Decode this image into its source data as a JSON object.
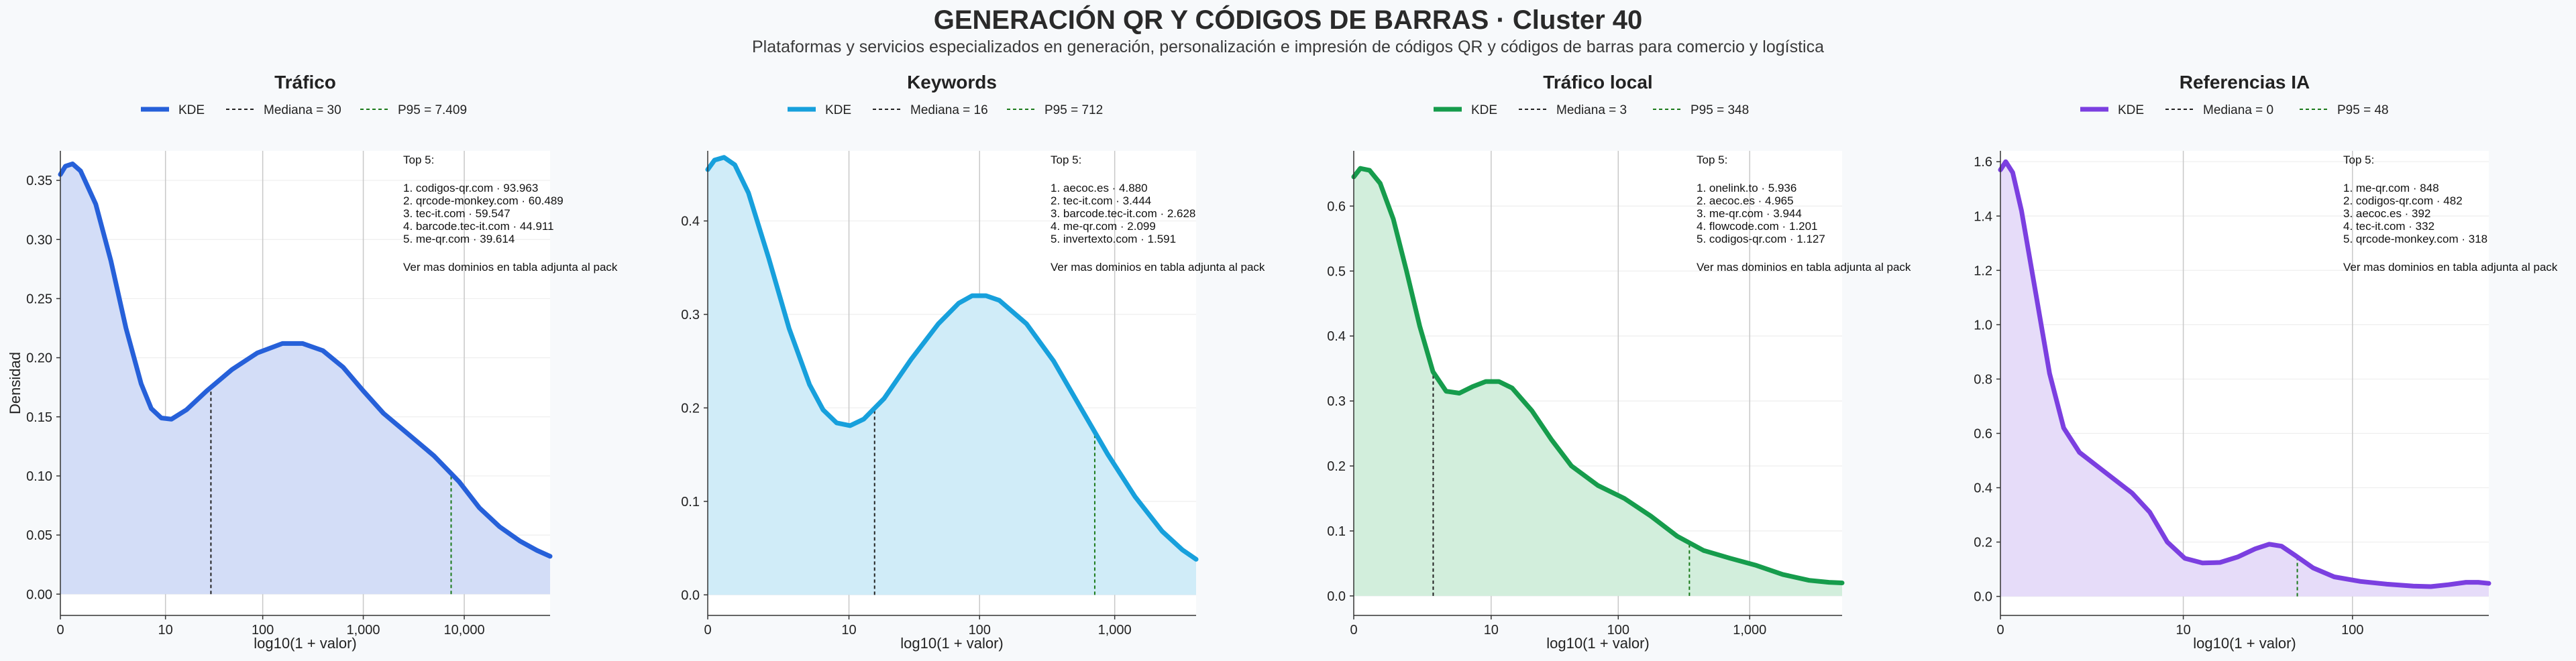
{
  "figure": {
    "title": "GENERACIÓN QR Y CÓDIGOS DE BARRAS · Cluster 40",
    "subtitle": "Plataformas y servicios especializados en generación, personalización e impresión de códigos QR y códigos de barras para comercio y logística",
    "background": "#f7f9fb"
  },
  "chart_data": [
    {
      "type": "area",
      "title": "Tráfico",
      "xlabel": "log10(1 + valor)",
      "ylabel": "Densidad",
      "xlim": [
        0,
        4.85
      ],
      "ylim": [
        -0.018,
        0.375
      ],
      "x_ticks": [
        {
          "v": 0,
          "label": "0"
        },
        {
          "v": 1.041,
          "label": "10"
        },
        {
          "v": 2.004,
          "label": "100"
        },
        {
          "v": 3.0,
          "label": "1,000"
        },
        {
          "v": 4.0,
          "label": "10,000"
        }
      ],
      "y_ticks": [
        {
          "v": 0,
          "label": "0.00"
        },
        {
          "v": 0.05,
          "label": "0.05"
        },
        {
          "v": 0.1,
          "label": "0.10"
        },
        {
          "v": 0.15,
          "label": "0.15"
        },
        {
          "v": 0.2,
          "label": "0.20"
        },
        {
          "v": 0.25,
          "label": "0.25"
        },
        {
          "v": 0.3,
          "label": "0.30"
        },
        {
          "v": 0.35,
          "label": "0.35"
        }
      ],
      "color": "#2660d9",
      "fill": "#d3ddf7",
      "kde": [
        [
          0,
          0.355
        ],
        [
          0.05,
          0.362
        ],
        [
          0.12,
          0.364
        ],
        [
          0.2,
          0.358
        ],
        [
          0.35,
          0.33
        ],
        [
          0.5,
          0.282
        ],
        [
          0.65,
          0.225
        ],
        [
          0.8,
          0.178
        ],
        [
          0.9,
          0.157
        ],
        [
          1.0,
          0.149
        ],
        [
          1.1,
          0.148
        ],
        [
          1.25,
          0.156
        ],
        [
          1.45,
          0.172
        ],
        [
          1.7,
          0.19
        ],
        [
          1.95,
          0.204
        ],
        [
          2.2,
          0.212
        ],
        [
          2.4,
          0.212
        ],
        [
          2.6,
          0.206
        ],
        [
          2.8,
          0.192
        ],
        [
          3.0,
          0.172
        ],
        [
          3.2,
          0.153
        ],
        [
          3.45,
          0.135
        ],
        [
          3.7,
          0.117
        ],
        [
          3.95,
          0.095
        ],
        [
          4.15,
          0.073
        ],
        [
          4.35,
          0.057
        ],
        [
          4.55,
          0.045
        ],
        [
          4.72,
          0.037
        ],
        [
          4.85,
          0.032
        ]
      ],
      "median": {
        "x": 1.491,
        "label": "Mediana = 30"
      },
      "p95": {
        "x": 3.87,
        "label": "P95 = 7.409"
      },
      "legend_kde": "KDE",
      "top5": {
        "heading": "Top 5:",
        "items": [
          "1. codigos-qr.com · 93.963",
          "2. qrcode-monkey.com · 60.489",
          "3. tec-it.com · 59.547",
          "4. barcode.tec-it.com · 44.911",
          "5. me-qr.com · 39.614"
        ],
        "note": "Ver mas dominios en tabla adjunta al pack"
      }
    },
    {
      "type": "area",
      "title": "Keywords",
      "xlabel": "log10(1 + valor)",
      "ylabel": "",
      "xlim": [
        0,
        3.6
      ],
      "ylim": [
        -0.022,
        0.475
      ],
      "x_ticks": [
        {
          "v": 0,
          "label": "0"
        },
        {
          "v": 1.041,
          "label": "10"
        },
        {
          "v": 2.004,
          "label": "100"
        },
        {
          "v": 3.0,
          "label": "1,000"
        }
      ],
      "y_ticks": [
        {
          "v": 0,
          "label": "0.0"
        },
        {
          "v": 0.1,
          "label": "0.1"
        },
        {
          "v": 0.2,
          "label": "0.2"
        },
        {
          "v": 0.3,
          "label": "0.3"
        },
        {
          "v": 0.4,
          "label": "0.4"
        }
      ],
      "color": "#17a0dc",
      "fill": "#d0ecf8",
      "kde": [
        [
          0,
          0.455
        ],
        [
          0.05,
          0.465
        ],
        [
          0.12,
          0.468
        ],
        [
          0.2,
          0.46
        ],
        [
          0.3,
          0.43
        ],
        [
          0.45,
          0.36
        ],
        [
          0.6,
          0.285
        ],
        [
          0.75,
          0.225
        ],
        [
          0.85,
          0.198
        ],
        [
          0.95,
          0.184
        ],
        [
          1.05,
          0.181
        ],
        [
          1.15,
          0.188
        ],
        [
          1.3,
          0.21
        ],
        [
          1.5,
          0.252
        ],
        [
          1.7,
          0.29
        ],
        [
          1.85,
          0.312
        ],
        [
          1.95,
          0.32
        ],
        [
          2.05,
          0.32
        ],
        [
          2.15,
          0.315
        ],
        [
          2.35,
          0.29
        ],
        [
          2.55,
          0.25
        ],
        [
          2.75,
          0.2
        ],
        [
          2.95,
          0.15
        ],
        [
          3.15,
          0.105
        ],
        [
          3.35,
          0.068
        ],
        [
          3.5,
          0.048
        ],
        [
          3.6,
          0.038
        ]
      ],
      "median": {
        "x": 1.23,
        "label": "Mediana = 16"
      },
      "p95": {
        "x": 2.853,
        "label": "P95 = 712"
      },
      "legend_kde": "KDE",
      "top5": {
        "heading": "Top 5:",
        "items": [
          "1. aecoc.es · 4.880",
          "2. tec-it.com · 3.444",
          "3. barcode.tec-it.com · 2.628",
          "4. me-qr.com · 2.099",
          "5. invertexto.com · 1.591"
        ],
        "note": "Ver mas dominios en tabla adjunta al pack"
      }
    },
    {
      "type": "area",
      "title": "Tráfico local",
      "xlabel": "log10(1 + valor)",
      "ylabel": "",
      "xlim": [
        0,
        3.7
      ],
      "ylim": [
        -0.03,
        0.685
      ],
      "x_ticks": [
        {
          "v": 0,
          "label": "0"
        },
        {
          "v": 1.041,
          "label": "10"
        },
        {
          "v": 2.004,
          "label": "100"
        },
        {
          "v": 3.0,
          "label": "1,000"
        }
      ],
      "y_ticks": [
        {
          "v": 0,
          "label": "0.0"
        },
        {
          "v": 0.1,
          "label": "0.1"
        },
        {
          "v": 0.2,
          "label": "0.2"
        },
        {
          "v": 0.3,
          "label": "0.3"
        },
        {
          "v": 0.4,
          "label": "0.4"
        },
        {
          "v": 0.5,
          "label": "0.5"
        },
        {
          "v": 0.6,
          "label": "0.6"
        }
      ],
      "color": "#169c4c",
      "fill": "#d2eedc",
      "kde": [
        [
          0,
          0.645
        ],
        [
          0.05,
          0.658
        ],
        [
          0.12,
          0.655
        ],
        [
          0.2,
          0.635
        ],
        [
          0.3,
          0.58
        ],
        [
          0.4,
          0.5
        ],
        [
          0.5,
          0.415
        ],
        [
          0.6,
          0.345
        ],
        [
          0.7,
          0.315
        ],
        [
          0.8,
          0.312
        ],
        [
          0.9,
          0.322
        ],
        [
          1.0,
          0.33
        ],
        [
          1.1,
          0.33
        ],
        [
          1.2,
          0.32
        ],
        [
          1.35,
          0.285
        ],
        [
          1.5,
          0.24
        ],
        [
          1.65,
          0.2
        ],
        [
          1.85,
          0.17
        ],
        [
          2.05,
          0.15
        ],
        [
          2.25,
          0.123
        ],
        [
          2.45,
          0.092
        ],
        [
          2.65,
          0.07
        ],
        [
          2.85,
          0.058
        ],
        [
          3.05,
          0.047
        ],
        [
          3.25,
          0.033
        ],
        [
          3.45,
          0.024
        ],
        [
          3.6,
          0.021
        ],
        [
          3.7,
          0.02
        ]
      ],
      "median": {
        "x": 0.602,
        "label": "Mediana = 3"
      },
      "p95": {
        "x": 2.543,
        "label": "P95 = 348"
      },
      "legend_kde": "KDE",
      "top5": {
        "heading": "Top 5:",
        "items": [
          "1. onelink.to · 5.936",
          "2. aecoc.es · 4.965",
          "3. me-qr.com · 3.944",
          "4. flowcode.com · 1.201",
          "5. codigos-qr.com · 1.127"
        ],
        "note": "Ver mas dominios en tabla adjunta al pack"
      }
    },
    {
      "type": "area",
      "title": "Referencias IA",
      "xlabel": "log10(1 + valor)",
      "ylabel": "",
      "xlim": [
        0,
        2.78
      ],
      "ylim": [
        -0.07,
        1.64
      ],
      "x_ticks": [
        {
          "v": 0,
          "label": "0"
        },
        {
          "v": 1.041,
          "label": "10"
        },
        {
          "v": 2.004,
          "label": "100"
        }
      ],
      "y_ticks": [
        {
          "v": 0,
          "label": "0.0"
        },
        {
          "v": 0.2,
          "label": "0.2"
        },
        {
          "v": 0.4,
          "label": "0.4"
        },
        {
          "v": 0.6,
          "label": "0.6"
        },
        {
          "v": 0.8,
          "label": "0.8"
        },
        {
          "v": 1.0,
          "label": "1.0"
        },
        {
          "v": 1.2,
          "label": "1.2"
        },
        {
          "v": 1.4,
          "label": "1.4"
        },
        {
          "v": 1.6,
          "label": "1.6"
        }
      ],
      "color": "#7b3fe0",
      "fill": "#e6dcf9",
      "kde": [
        [
          0,
          1.57
        ],
        [
          0.03,
          1.6
        ],
        [
          0.07,
          1.56
        ],
        [
          0.12,
          1.42
        ],
        [
          0.2,
          1.12
        ],
        [
          0.28,
          0.82
        ],
        [
          0.36,
          0.62
        ],
        [
          0.45,
          0.53
        ],
        [
          0.55,
          0.48
        ],
        [
          0.65,
          0.43
        ],
        [
          0.75,
          0.38
        ],
        [
          0.85,
          0.31
        ],
        [
          0.95,
          0.2
        ],
        [
          1.05,
          0.14
        ],
        [
          1.15,
          0.123
        ],
        [
          1.25,
          0.125
        ],
        [
          1.35,
          0.145
        ],
        [
          1.45,
          0.175
        ],
        [
          1.53,
          0.192
        ],
        [
          1.6,
          0.185
        ],
        [
          1.68,
          0.15
        ],
        [
          1.78,
          0.105
        ],
        [
          1.9,
          0.072
        ],
        [
          2.05,
          0.055
        ],
        [
          2.2,
          0.045
        ],
        [
          2.35,
          0.038
        ],
        [
          2.45,
          0.036
        ],
        [
          2.55,
          0.043
        ],
        [
          2.65,
          0.052
        ],
        [
          2.72,
          0.052
        ],
        [
          2.78,
          0.048
        ]
      ],
      "median": {
        "x": 0.0,
        "label": "Mediana = 0"
      },
      "p95": {
        "x": 1.69,
        "label": "P95 = 48"
      },
      "legend_kde": "KDE",
      "top5": {
        "heading": "Top 5:",
        "items": [
          "1. me-qr.com · 848",
          "2. codigos-qr.com · 482",
          "3. aecoc.es · 392",
          "4. tec-it.com · 332",
          "5. qrcode-monkey.com · 318"
        ],
        "note": "Ver mas dominios en tabla adjunta al pack"
      }
    }
  ]
}
